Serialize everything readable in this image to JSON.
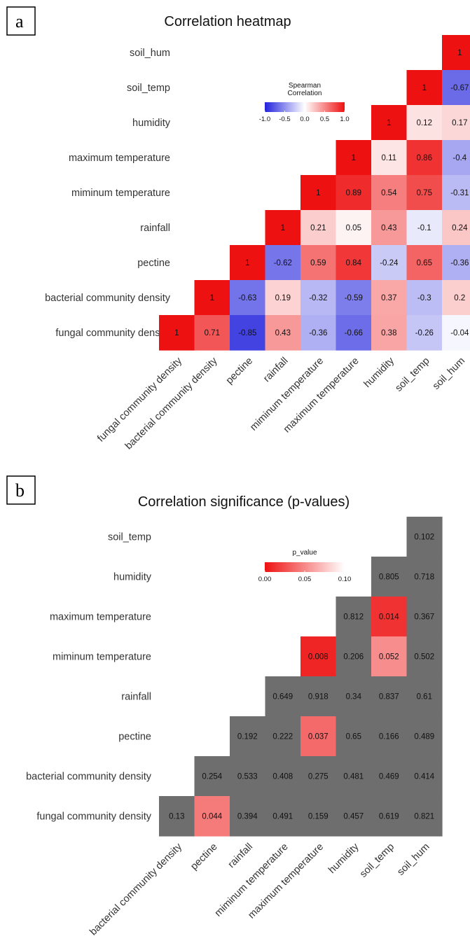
{
  "chart_data": [
    {
      "panel": "a",
      "type": "heatmap",
      "title": "Correlation heatmap",
      "legend": {
        "title_lines": [
          "Spearman",
          "Correlation"
        ],
        "ticks": [
          "-1.0",
          "-0.5",
          "0.0",
          "0.5",
          "1.0"
        ],
        "range": [
          -1,
          1
        ],
        "colors": {
          "low": "#2222dd",
          "mid": "#ffffff",
          "high": "#ee1111"
        }
      },
      "rows": [
        "soil_hum",
        "soil_temp",
        "humidity",
        "maximum temperature",
        "miminum temperature",
        "rainfall",
        "pectine",
        "bacterial community density",
        "fungal community density"
      ],
      "columns": [
        "fungal community density",
        "bacterial community density",
        "pectine",
        "rainfall",
        "miminum temperature",
        "maximum temperature",
        "humidity",
        "soil_temp",
        "soil_hum"
      ],
      "cells": [
        {
          "row": "soil_hum",
          "col": "soil_hum",
          "value": 1,
          "label": "1"
        },
        {
          "row": "soil_temp",
          "col": "soil_temp",
          "value": 1,
          "label": "1"
        },
        {
          "row": "soil_temp",
          "col": "soil_hum",
          "value": -0.67,
          "label": "-0.67"
        },
        {
          "row": "humidity",
          "col": "humidity",
          "value": 1,
          "label": "1"
        },
        {
          "row": "humidity",
          "col": "soil_temp",
          "value": 0.12,
          "label": "0.12"
        },
        {
          "row": "humidity",
          "col": "soil_hum",
          "value": 0.17,
          "label": "0.17"
        },
        {
          "row": "maximum temperature",
          "col": "maximum temperature",
          "value": 1,
          "label": "1"
        },
        {
          "row": "maximum temperature",
          "col": "humidity",
          "value": 0.11,
          "label": "0.11"
        },
        {
          "row": "maximum temperature",
          "col": "soil_temp",
          "value": 0.86,
          "label": "0.86"
        },
        {
          "row": "maximum temperature",
          "col": "soil_hum",
          "value": -0.4,
          "label": "-0.4"
        },
        {
          "row": "miminum temperature",
          "col": "miminum temperature",
          "value": 1,
          "label": "1"
        },
        {
          "row": "miminum temperature",
          "col": "maximum temperature",
          "value": 0.89,
          "label": "0.89"
        },
        {
          "row": "miminum temperature",
          "col": "humidity",
          "value": 0.54,
          "label": "0.54"
        },
        {
          "row": "miminum temperature",
          "col": "soil_temp",
          "value": 0.75,
          "label": "0.75"
        },
        {
          "row": "miminum temperature",
          "col": "soil_hum",
          "value": -0.31,
          "label": "-0.31"
        },
        {
          "row": "rainfall",
          "col": "rainfall",
          "value": 1,
          "label": "1"
        },
        {
          "row": "rainfall",
          "col": "miminum temperature",
          "value": 0.21,
          "label": "0.21"
        },
        {
          "row": "rainfall",
          "col": "maximum temperature",
          "value": 0.05,
          "label": "0.05"
        },
        {
          "row": "rainfall",
          "col": "humidity",
          "value": 0.43,
          "label": "0.43"
        },
        {
          "row": "rainfall",
          "col": "soil_temp",
          "value": -0.1,
          "label": "-0.1"
        },
        {
          "row": "rainfall",
          "col": "soil_hum",
          "value": 0.24,
          "label": "0.24"
        },
        {
          "row": "pectine",
          "col": "pectine",
          "value": 1,
          "label": "1"
        },
        {
          "row": "pectine",
          "col": "rainfall",
          "value": -0.62,
          "label": "-0.62"
        },
        {
          "row": "pectine",
          "col": "miminum temperature",
          "value": 0.59,
          "label": "0.59"
        },
        {
          "row": "pectine",
          "col": "maximum temperature",
          "value": 0.84,
          "label": "0.84"
        },
        {
          "row": "pectine",
          "col": "humidity",
          "value": -0.24,
          "label": "-0.24"
        },
        {
          "row": "pectine",
          "col": "soil_temp",
          "value": 0.65,
          "label": "0.65"
        },
        {
          "row": "pectine",
          "col": "soil_hum",
          "value": -0.36,
          "label": "-0.36"
        },
        {
          "row": "bacterial community density",
          "col": "bacterial community density",
          "value": 1,
          "label": "1"
        },
        {
          "row": "bacterial community density",
          "col": "pectine",
          "value": -0.63,
          "label": "-0.63"
        },
        {
          "row": "bacterial community density",
          "col": "rainfall",
          "value": 0.19,
          "label": "0.19"
        },
        {
          "row": "bacterial community density",
          "col": "miminum temperature",
          "value": -0.32,
          "label": "-0.32"
        },
        {
          "row": "bacterial community density",
          "col": "maximum temperature",
          "value": -0.59,
          "label": "-0.59"
        },
        {
          "row": "bacterial community density",
          "col": "humidity",
          "value": 0.37,
          "label": "0.37"
        },
        {
          "row": "bacterial community density",
          "col": "soil_temp",
          "value": -0.3,
          "label": "-0.3"
        },
        {
          "row": "bacterial community density",
          "col": "soil_hum",
          "value": 0.2,
          "label": "0.2"
        },
        {
          "row": "fungal community density",
          "col": "fungal community density",
          "value": 1,
          "label": "1"
        },
        {
          "row": "fungal community density",
          "col": "bacterial community density",
          "value": 0.71,
          "label": "0.71"
        },
        {
          "row": "fungal community density",
          "col": "pectine",
          "value": -0.85,
          "label": "-0.85"
        },
        {
          "row": "fungal community density",
          "col": "rainfall",
          "value": 0.43,
          "label": "0.43"
        },
        {
          "row": "fungal community density",
          "col": "miminum temperature",
          "value": -0.36,
          "label": "-0.36"
        },
        {
          "row": "fungal community density",
          "col": "maximum temperature",
          "value": -0.66,
          "label": "-0.66"
        },
        {
          "row": "fungal community density",
          "col": "humidity",
          "value": 0.38,
          "label": "0.38"
        },
        {
          "row": "fungal community density",
          "col": "soil_temp",
          "value": -0.26,
          "label": "-0.26"
        },
        {
          "row": "fungal community density",
          "col": "soil_hum",
          "value": -0.04,
          "label": "-0.04"
        }
      ]
    },
    {
      "panel": "b",
      "type": "heatmap",
      "title": "Correlation significance (p-values)",
      "legend": {
        "title_lines": [
          "p_value"
        ],
        "ticks": [
          "0.00",
          "0.05",
          "0.10"
        ],
        "range": [
          0,
          0.1
        ],
        "colors": {
          "low": "#ee1111",
          "high": "#ffffff",
          "nonsignificant": "#6e6e6e"
        }
      },
      "rows": [
        "soil_temp",
        "humidity",
        "maximum temperature",
        "miminum temperature",
        "rainfall",
        "pectine",
        "bacterial community density",
        "fungal community density"
      ],
      "columns": [
        "bacterial community density",
        "pectine",
        "rainfall",
        "miminum temperature",
        "maximum temperature",
        "humidity",
        "soil_temp",
        "soil_hum"
      ],
      "cells": [
        {
          "row": "soil_temp",
          "col": "soil_hum",
          "value": 0.102,
          "label": "0.102"
        },
        {
          "row": "humidity",
          "col": "soil_temp",
          "value": 0.805,
          "label": "0.805"
        },
        {
          "row": "humidity",
          "col": "soil_hum",
          "value": 0.718,
          "label": "0.718"
        },
        {
          "row": "maximum temperature",
          "col": "humidity",
          "value": 0.812,
          "label": "0.812"
        },
        {
          "row": "maximum temperature",
          "col": "soil_temp",
          "value": 0.014,
          "label": "0.014"
        },
        {
          "row": "maximum temperature",
          "col": "soil_hum",
          "value": 0.367,
          "label": "0.367"
        },
        {
          "row": "miminum temperature",
          "col": "maximum temperature",
          "value": 0.008,
          "label": "0.008"
        },
        {
          "row": "miminum temperature",
          "col": "humidity",
          "value": 0.206,
          "label": "0.206"
        },
        {
          "row": "miminum temperature",
          "col": "soil_temp",
          "value": 0.052,
          "label": "0.052"
        },
        {
          "row": "miminum temperature",
          "col": "soil_hum",
          "value": 0.502,
          "label": "0.502"
        },
        {
          "row": "rainfall",
          "col": "miminum temperature",
          "value": 0.649,
          "label": "0.649"
        },
        {
          "row": "rainfall",
          "col": "maximum temperature",
          "value": 0.918,
          "label": "0.918"
        },
        {
          "row": "rainfall",
          "col": "humidity",
          "value": 0.34,
          "label": "0.34"
        },
        {
          "row": "rainfall",
          "col": "soil_temp",
          "value": 0.837,
          "label": "0.837"
        },
        {
          "row": "rainfall",
          "col": "soil_hum",
          "value": 0.61,
          "label": "0.61"
        },
        {
          "row": "pectine",
          "col": "rainfall",
          "value": 0.192,
          "label": "0.192"
        },
        {
          "row": "pectine",
          "col": "miminum temperature",
          "value": 0.222,
          "label": "0.222"
        },
        {
          "row": "pectine",
          "col": "maximum temperature",
          "value": 0.037,
          "label": "0.037"
        },
        {
          "row": "pectine",
          "col": "humidity",
          "value": 0.65,
          "label": "0.65"
        },
        {
          "row": "pectine",
          "col": "soil_temp",
          "value": 0.166,
          "label": "0.166"
        },
        {
          "row": "pectine",
          "col": "soil_hum",
          "value": 0.489,
          "label": "0.489"
        },
        {
          "row": "bacterial community density",
          "col": "pectine",
          "value": 0.254,
          "label": "0.254"
        },
        {
          "row": "bacterial community density",
          "col": "rainfall",
          "value": 0.533,
          "label": "0.533"
        },
        {
          "row": "bacterial community density",
          "col": "miminum temperature",
          "value": 0.408,
          "label": "0.408"
        },
        {
          "row": "bacterial community density",
          "col": "maximum temperature",
          "value": 0.275,
          "label": "0.275"
        },
        {
          "row": "bacterial community density",
          "col": "humidity",
          "value": 0.481,
          "label": "0.481"
        },
        {
          "row": "bacterial community density",
          "col": "soil_temp",
          "value": 0.469,
          "label": "0.469"
        },
        {
          "row": "bacterial community density",
          "col": "soil_hum",
          "value": 0.414,
          "label": "0.414"
        },
        {
          "row": "fungal community density",
          "col": "bacterial community density",
          "value": 0.13,
          "label": "0.13"
        },
        {
          "row": "fungal community density",
          "col": "pectine",
          "value": 0.044,
          "label": "0.044"
        },
        {
          "row": "fungal community density",
          "col": "rainfall",
          "value": 0.394,
          "label": "0.394"
        },
        {
          "row": "fungal community density",
          "col": "miminum temperature",
          "value": 0.491,
          "label": "0.491"
        },
        {
          "row": "fungal community density",
          "col": "maximum temperature",
          "value": 0.159,
          "label": "0.159"
        },
        {
          "row": "fungal community density",
          "col": "humidity",
          "value": 0.457,
          "label": "0.457"
        },
        {
          "row": "fungal community density",
          "col": "soil_temp",
          "value": 0.619,
          "label": "0.619"
        },
        {
          "row": "fungal community density",
          "col": "soil_hum",
          "value": 0.821,
          "label": "0.821"
        }
      ]
    }
  ]
}
